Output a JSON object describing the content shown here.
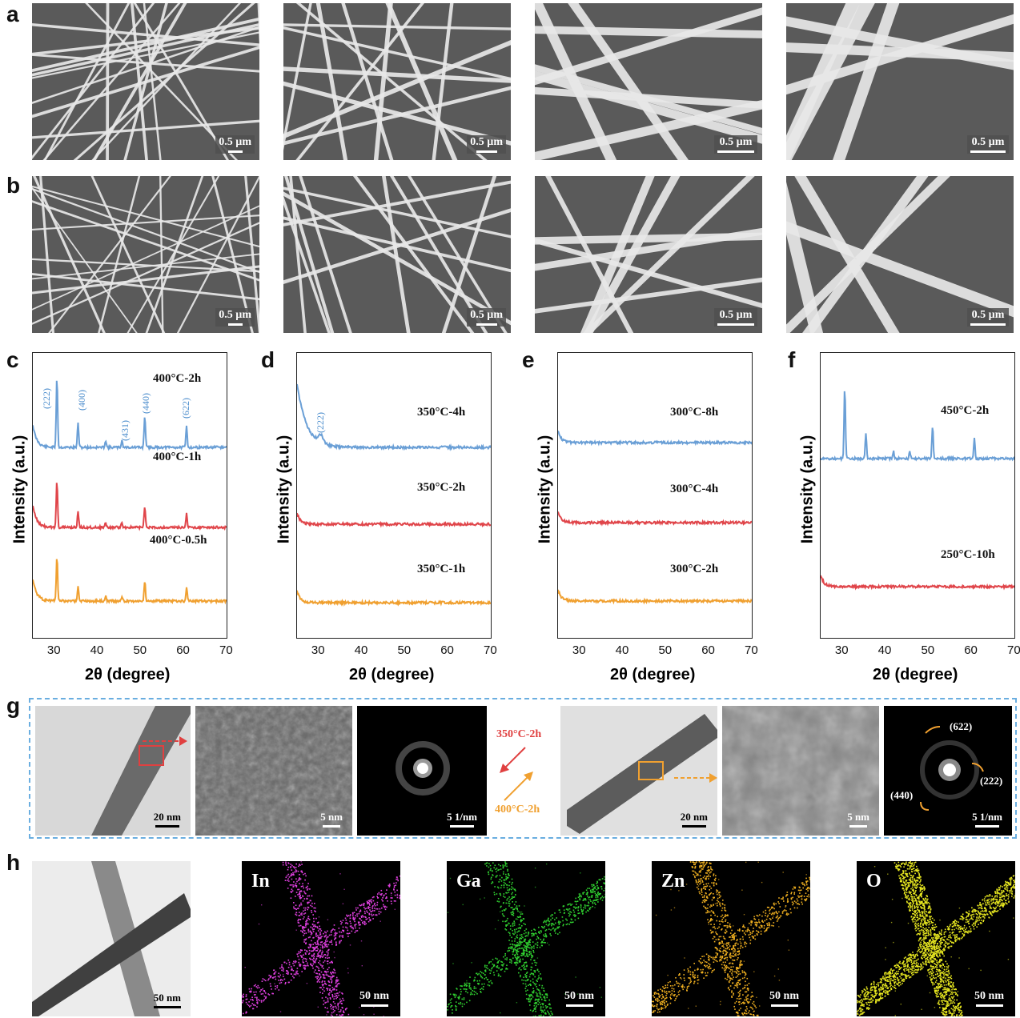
{
  "panels": {
    "a": "a",
    "b": "b",
    "c": "c",
    "d": "d",
    "e": "e",
    "f": "f",
    "g": "g",
    "h": "h"
  },
  "sem_scale": "0.5 µm",
  "xrd": {
    "ylabel": "Intensity (a.u.)",
    "xlabel": "2θ (degree)",
    "xticks": [
      "30",
      "40",
      "50",
      "60",
      "70"
    ],
    "colors": {
      "blue": "#6a9fd6",
      "red": "#e0454a",
      "orange": "#f0a030"
    }
  },
  "chart_data": [
    {
      "type": "line",
      "panel": "c",
      "xlim": [
        25,
        70
      ],
      "series": [
        {
          "name": "400°C-2h",
          "color": "#6a9fd6",
          "peaks": [
            30.6,
            35.5,
            41.9,
            45.7,
            51.0,
            60.7
          ]
        },
        {
          "name": "400°C-1h",
          "color": "#e0454a",
          "peaks": [
            30.6,
            35.5,
            41.9,
            45.7,
            51.0,
            60.7
          ]
        },
        {
          "name": "400°C-0.5h",
          "color": "#f0a030",
          "peaks": [
            30.6,
            35.5,
            41.9,
            45.7,
            51.0,
            60.7
          ]
        }
      ],
      "annotations": [
        "(222)",
        "(400)",
        "(431)",
        "(440)",
        "(622)"
      ]
    },
    {
      "type": "line",
      "panel": "d",
      "xlim": [
        25,
        70
      ],
      "series": [
        {
          "name": "350°C-4h",
          "color": "#6a9fd6"
        },
        {
          "name": "350°C-2h",
          "color": "#e0454a"
        },
        {
          "name": "350°C-1h",
          "color": "#f0a030"
        }
      ],
      "annotations": [
        "(222)"
      ]
    },
    {
      "type": "line",
      "panel": "e",
      "xlim": [
        25,
        70
      ],
      "series": [
        {
          "name": "300°C-8h",
          "color": "#6a9fd6"
        },
        {
          "name": "300°C-4h",
          "color": "#e0454a"
        },
        {
          "name": "300°C-2h",
          "color": "#f0a030"
        }
      ]
    },
    {
      "type": "line",
      "panel": "f",
      "xlim": [
        25,
        70
      ],
      "series": [
        {
          "name": "450°C-2h",
          "color": "#6a9fd6",
          "peaks": [
            30.6,
            35.5,
            41.9,
            45.7,
            51.0,
            60.7
          ]
        },
        {
          "name": "250°C-10h",
          "color": "#e0454a"
        }
      ]
    }
  ],
  "tem": {
    "scale_20nm": "20 nm",
    "scale_5nm": "5 nm",
    "scale_saed": "5 1/nm",
    "arrow_top": "350°C-2h",
    "arrow_bottom": "400°C-2h",
    "ring_622": "(622)",
    "ring_222": "(222)",
    "ring_440": "(440)"
  },
  "eds": {
    "scale": "50 nm",
    "elements": [
      "In",
      "Ga",
      "Zn",
      "O"
    ],
    "colors": [
      "#e040e0",
      "#30d030",
      "#f0b020",
      "#e8e820"
    ]
  }
}
